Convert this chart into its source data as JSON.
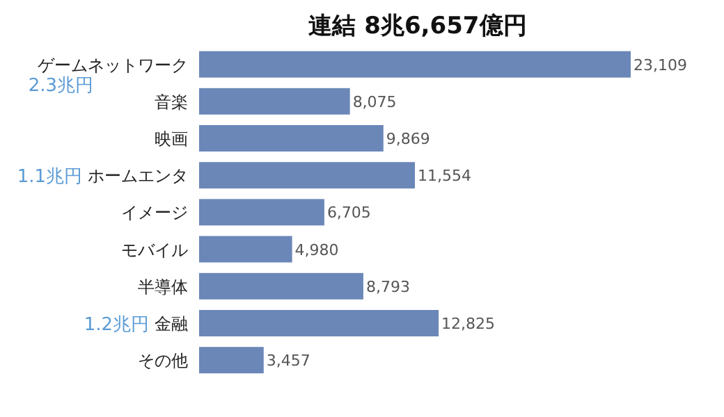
{
  "chart_data": {
    "type": "bar",
    "orientation": "horizontal",
    "title": "連結 8兆6,657億円",
    "categories": [
      "ゲームネットワーク",
      "音楽",
      "映画",
      "ホームエンタ",
      "イメージ",
      "モバイル",
      "半導体",
      "金融",
      "その他"
    ],
    "values": [
      23109,
      8075,
      9869,
      11554,
      6705,
      4980,
      8793,
      12825,
      3457
    ],
    "value_labels": [
      "23,109",
      "8,075",
      "9,869",
      "11,554",
      "6,705",
      "4,980",
      "8,793",
      "12,825",
      "3,457"
    ],
    "color": "#6b87b8",
    "annotations": [
      "2.3兆円",
      "1.1兆円",
      "1.2兆円"
    ]
  }
}
